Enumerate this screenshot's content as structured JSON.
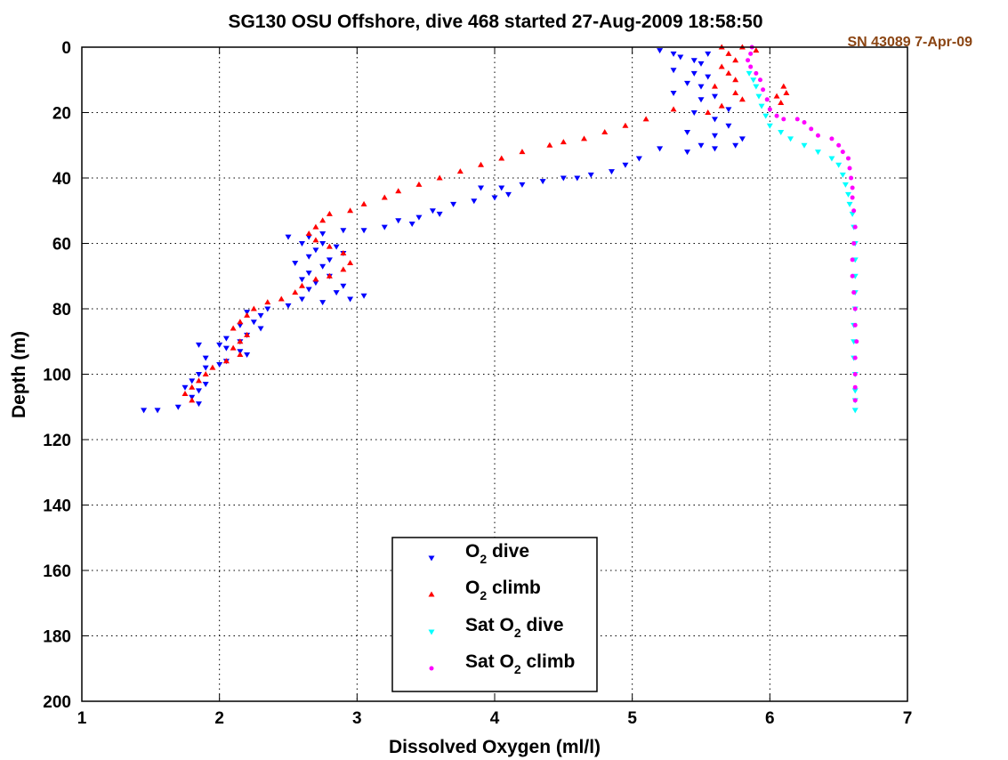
{
  "chart_data": {
    "type": "scatter",
    "title": "SG130 OSU Offshore, dive 468 started 27-Aug-2009 18:58:50",
    "annotation": "SN 43089 7-Apr-09",
    "xlabel": "Dissolved Oxygen (ml/l)",
    "ylabel": "Depth (m)",
    "xlim": [
      1,
      7
    ],
    "ylim": [
      0,
      200
    ],
    "y_reversed": true,
    "grid": true,
    "grid_style": "dotted",
    "x_ticks": [
      1,
      2,
      3,
      4,
      5,
      6,
      7
    ],
    "y_ticks": [
      0,
      20,
      40,
      60,
      80,
      100,
      120,
      140,
      160,
      180,
      200
    ],
    "legend_position": "bottom-center",
    "series": [
      {
        "name": "O2 dive",
        "legend": {
          "pre": "O",
          "sub": "2",
          "post": " dive"
        },
        "color": "#0000ff",
        "marker": "triangle-down",
        "points": [
          [
            5.2,
            1
          ],
          [
            5.3,
            2
          ],
          [
            5.35,
            3
          ],
          [
            5.45,
            4
          ],
          [
            5.55,
            2
          ],
          [
            5.5,
            5
          ],
          [
            5.3,
            7
          ],
          [
            5.45,
            8
          ],
          [
            5.55,
            9
          ],
          [
            5.4,
            11
          ],
          [
            5.5,
            12
          ],
          [
            5.3,
            14
          ],
          [
            5.6,
            15
          ],
          [
            5.5,
            16
          ],
          [
            5.7,
            19
          ],
          [
            5.45,
            20
          ],
          [
            5.6,
            22
          ],
          [
            5.7,
            24
          ],
          [
            5.4,
            26
          ],
          [
            5.6,
            27
          ],
          [
            5.8,
            28
          ],
          [
            5.5,
            30
          ],
          [
            5.75,
            30
          ],
          [
            5.6,
            31
          ],
          [
            5.4,
            32
          ],
          [
            5.2,
            31
          ],
          [
            5.05,
            34
          ],
          [
            4.95,
            36
          ],
          [
            4.85,
            38
          ],
          [
            4.7,
            39
          ],
          [
            4.6,
            40
          ],
          [
            4.5,
            40
          ],
          [
            4.35,
            41
          ],
          [
            4.2,
            42
          ],
          [
            4.05,
            43
          ],
          [
            3.9,
            43
          ],
          [
            4.1,
            45
          ],
          [
            4.0,
            46
          ],
          [
            3.85,
            47
          ],
          [
            3.7,
            48
          ],
          [
            3.55,
            50
          ],
          [
            3.6,
            51
          ],
          [
            3.45,
            52
          ],
          [
            3.3,
            53
          ],
          [
            3.4,
            54
          ],
          [
            3.2,
            55
          ],
          [
            3.05,
            56
          ],
          [
            2.9,
            56
          ],
          [
            2.75,
            57
          ],
          [
            2.5,
            58
          ],
          [
            2.65,
            58
          ],
          [
            2.6,
            60
          ],
          [
            2.75,
            60
          ],
          [
            2.85,
            61
          ],
          [
            2.7,
            62
          ],
          [
            2.9,
            63
          ],
          [
            2.65,
            64
          ],
          [
            2.8,
            65
          ],
          [
            2.55,
            66
          ],
          [
            2.75,
            67
          ],
          [
            2.65,
            69
          ],
          [
            2.8,
            70
          ],
          [
            2.6,
            71
          ],
          [
            2.7,
            72
          ],
          [
            2.9,
            73
          ],
          [
            2.65,
            74
          ],
          [
            2.85,
            75
          ],
          [
            3.05,
            76
          ],
          [
            2.95,
            77
          ],
          [
            2.6,
            77
          ],
          [
            2.75,
            78
          ],
          [
            2.5,
            79
          ],
          [
            2.35,
            80
          ],
          [
            2.2,
            81
          ],
          [
            2.3,
            82
          ],
          [
            2.25,
            84
          ],
          [
            2.15,
            85
          ],
          [
            2.3,
            86
          ],
          [
            2.2,
            88
          ],
          [
            2.05,
            89
          ],
          [
            2.15,
            90
          ],
          [
            1.85,
            91
          ],
          [
            2.0,
            91
          ],
          [
            2.05,
            92
          ],
          [
            2.15,
            93
          ],
          [
            2.2,
            94
          ],
          [
            1.9,
            95
          ],
          [
            2.05,
            96
          ],
          [
            2.0,
            97
          ],
          [
            1.9,
            98
          ],
          [
            1.85,
            100
          ],
          [
            1.8,
            102
          ],
          [
            1.9,
            103
          ],
          [
            1.75,
            104
          ],
          [
            1.85,
            105
          ],
          [
            1.8,
            107
          ],
          [
            1.85,
            109
          ],
          [
            1.7,
            110
          ],
          [
            1.55,
            111
          ],
          [
            1.45,
            111
          ]
        ]
      },
      {
        "name": "O2 climb",
        "legend": {
          "pre": "O",
          "sub": "2",
          "post": " climb"
        },
        "color": "#ff0000",
        "marker": "triangle-up",
        "points": [
          [
            5.65,
            0
          ],
          [
            5.8,
            0
          ],
          [
            5.9,
            1
          ],
          [
            5.7,
            2
          ],
          [
            5.75,
            4
          ],
          [
            5.65,
            6
          ],
          [
            5.7,
            8
          ],
          [
            5.75,
            10
          ],
          [
            5.6,
            12
          ],
          [
            5.75,
            14
          ],
          [
            6.1,
            12
          ],
          [
            6.12,
            14
          ],
          [
            6.05,
            15
          ],
          [
            6.08,
            17
          ],
          [
            5.8,
            16
          ],
          [
            5.65,
            18
          ],
          [
            5.55,
            20
          ],
          [
            5.3,
            19
          ],
          [
            5.1,
            22
          ],
          [
            4.95,
            24
          ],
          [
            4.8,
            26
          ],
          [
            4.65,
            28
          ],
          [
            4.5,
            29
          ],
          [
            4.4,
            30
          ],
          [
            4.2,
            32
          ],
          [
            4.05,
            34
          ],
          [
            3.9,
            36
          ],
          [
            3.75,
            38
          ],
          [
            3.6,
            40
          ],
          [
            3.45,
            42
          ],
          [
            3.3,
            44
          ],
          [
            3.2,
            46
          ],
          [
            3.05,
            48
          ],
          [
            2.95,
            50
          ],
          [
            2.8,
            51
          ],
          [
            2.75,
            53
          ],
          [
            2.7,
            55
          ],
          [
            2.65,
            57
          ],
          [
            2.7,
            59
          ],
          [
            2.8,
            61
          ],
          [
            2.9,
            63
          ],
          [
            2.95,
            66
          ],
          [
            2.9,
            68
          ],
          [
            2.8,
            70
          ],
          [
            2.7,
            71
          ],
          [
            2.6,
            73
          ],
          [
            2.55,
            75
          ],
          [
            2.45,
            77
          ],
          [
            2.35,
            78
          ],
          [
            2.25,
            80
          ],
          [
            2.2,
            82
          ],
          [
            2.15,
            84
          ],
          [
            2.1,
            86
          ],
          [
            2.2,
            88
          ],
          [
            2.15,
            90
          ],
          [
            2.1,
            92
          ],
          [
            2.15,
            94
          ],
          [
            2.05,
            96
          ],
          [
            1.95,
            98
          ],
          [
            1.9,
            100
          ],
          [
            1.85,
            102
          ],
          [
            1.8,
            104
          ],
          [
            1.75,
            106
          ],
          [
            1.8,
            108
          ]
        ]
      },
      {
        "name": "Sat O2 dive",
        "legend": {
          "pre": "Sat O",
          "sub": "2",
          "post": " dive"
        },
        "color": "#00ffff",
        "marker": "triangle-down",
        "points": [
          [
            5.85,
            8
          ],
          [
            5.88,
            10
          ],
          [
            5.9,
            12
          ],
          [
            5.92,
            15
          ],
          [
            5.94,
            18
          ],
          [
            5.97,
            21
          ],
          [
            6.0,
            24
          ],
          [
            6.08,
            26
          ],
          [
            6.15,
            28
          ],
          [
            6.25,
            30
          ],
          [
            6.35,
            32
          ],
          [
            6.45,
            34
          ],
          [
            6.5,
            36
          ],
          [
            6.53,
            39
          ],
          [
            6.55,
            42
          ],
          [
            6.57,
            45
          ],
          [
            6.58,
            48
          ],
          [
            6.6,
            51
          ],
          [
            6.61,
            55
          ],
          [
            6.62,
            60
          ],
          [
            6.62,
            65
          ],
          [
            6.62,
            70
          ],
          [
            6.62,
            75
          ],
          [
            6.62,
            80
          ],
          [
            6.61,
            85
          ],
          [
            6.61,
            90
          ],
          [
            6.61,
            95
          ],
          [
            6.62,
            100
          ],
          [
            6.62,
            105
          ],
          [
            6.62,
            108
          ],
          [
            6.62,
            111
          ]
        ]
      },
      {
        "name": "Sat O2 climb",
        "legend": {
          "pre": "Sat O",
          "sub": "2",
          "post": " climb"
        },
        "color": "#ff00ff",
        "marker": "dot",
        "points": [
          [
            5.87,
            0
          ],
          [
            5.86,
            2
          ],
          [
            5.84,
            4
          ],
          [
            5.86,
            6
          ],
          [
            5.9,
            8
          ],
          [
            5.93,
            10
          ],
          [
            5.95,
            13
          ],
          [
            5.98,
            16
          ],
          [
            6.0,
            19
          ],
          [
            6.05,
            21
          ],
          [
            6.1,
            22
          ],
          [
            6.2,
            22
          ],
          [
            6.25,
            23
          ],
          [
            6.3,
            25
          ],
          [
            6.35,
            27
          ],
          [
            6.45,
            28
          ],
          [
            6.5,
            30
          ],
          [
            6.53,
            32
          ],
          [
            6.57,
            34
          ],
          [
            6.58,
            37
          ],
          [
            6.59,
            40
          ],
          [
            6.6,
            43
          ],
          [
            6.6,
            46
          ],
          [
            6.61,
            50
          ],
          [
            6.62,
            55
          ],
          [
            6.61,
            60
          ],
          [
            6.6,
            65
          ],
          [
            6.6,
            70
          ],
          [
            6.61,
            75
          ],
          [
            6.62,
            80
          ],
          [
            6.62,
            85
          ],
          [
            6.63,
            90
          ],
          [
            6.62,
            95
          ],
          [
            6.62,
            100
          ],
          [
            6.62,
            104
          ],
          [
            6.62,
            108
          ]
        ]
      }
    ]
  }
}
